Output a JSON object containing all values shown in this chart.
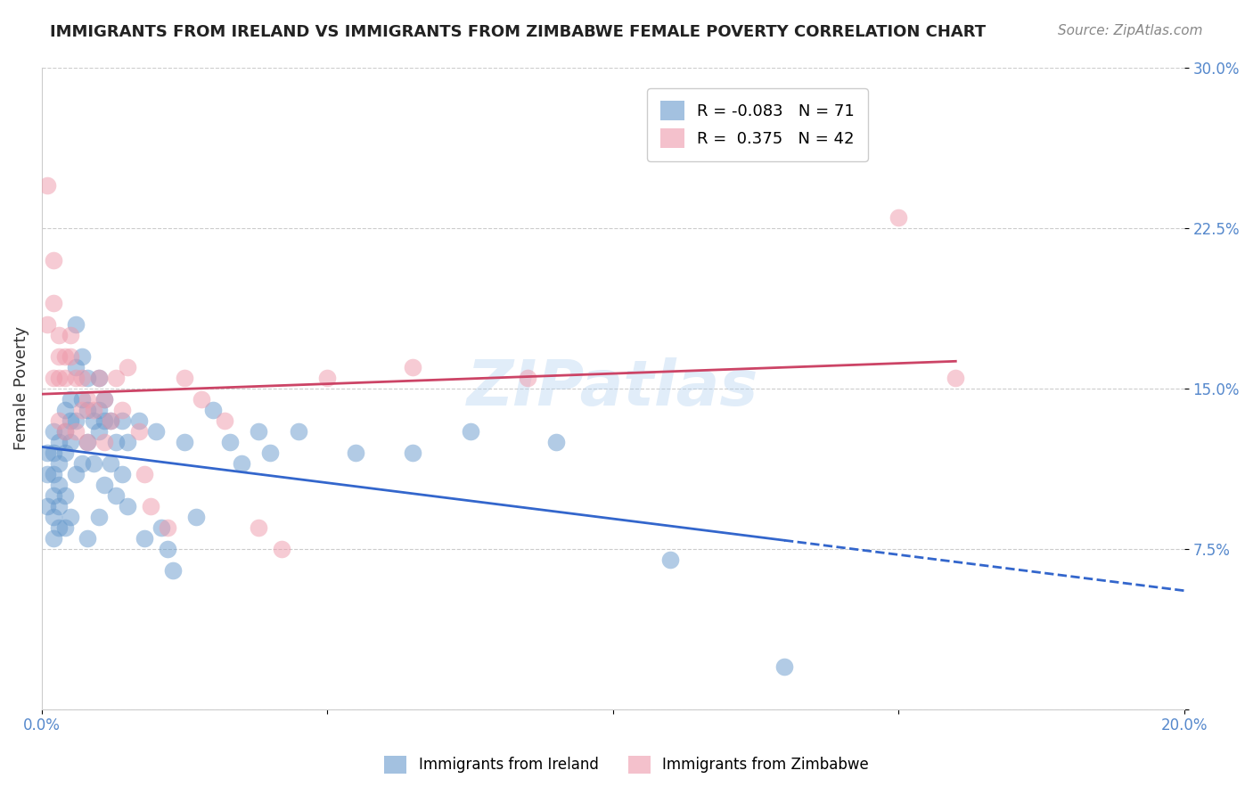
{
  "title": "IMMIGRANTS FROM IRELAND VS IMMIGRANTS FROM ZIMBABWE FEMALE POVERTY CORRELATION CHART",
  "source": "Source: ZipAtlas.com",
  "xlabel": "",
  "ylabel": "Female Poverty",
  "xlim": [
    0.0,
    0.2
  ],
  "ylim": [
    0.0,
    0.3
  ],
  "xticks": [
    0.0,
    0.05,
    0.1,
    0.15,
    0.2
  ],
  "xtick_labels": [
    "0.0%",
    "",
    "",
    "",
    "20.0%"
  ],
  "yticks": [
    0.0,
    0.075,
    0.15,
    0.225,
    0.3
  ],
  "ytick_labels_right": [
    "",
    "7.5%",
    "15.0%",
    "22.5%",
    "30.0%"
  ],
  "ireland_color": "#6699cc",
  "zimbabwe_color": "#ee99aa",
  "ireland_R": -0.083,
  "ireland_N": 71,
  "zimbabwe_R": 0.375,
  "zimbabwe_N": 42,
  "ireland_line_color": "#3366cc",
  "zimbabwe_line_color": "#cc4466",
  "watermark": "ZIPatlas",
  "ireland_x": [
    0.001,
    0.001,
    0.001,
    0.002,
    0.002,
    0.002,
    0.002,
    0.002,
    0.002,
    0.003,
    0.003,
    0.003,
    0.003,
    0.003,
    0.004,
    0.004,
    0.004,
    0.004,
    0.004,
    0.005,
    0.005,
    0.005,
    0.005,
    0.006,
    0.006,
    0.006,
    0.006,
    0.007,
    0.007,
    0.007,
    0.008,
    0.008,
    0.008,
    0.008,
    0.009,
    0.009,
    0.01,
    0.01,
    0.01,
    0.01,
    0.011,
    0.011,
    0.011,
    0.012,
    0.012,
    0.013,
    0.013,
    0.014,
    0.014,
    0.015,
    0.015,
    0.017,
    0.018,
    0.02,
    0.021,
    0.022,
    0.023,
    0.025,
    0.027,
    0.03,
    0.033,
    0.035,
    0.038,
    0.04,
    0.045,
    0.055,
    0.065,
    0.075,
    0.09,
    0.11,
    0.13
  ],
  "ireland_y": [
    0.12,
    0.11,
    0.095,
    0.13,
    0.12,
    0.11,
    0.1,
    0.09,
    0.08,
    0.125,
    0.115,
    0.105,
    0.095,
    0.085,
    0.14,
    0.13,
    0.12,
    0.1,
    0.085,
    0.145,
    0.135,
    0.125,
    0.09,
    0.18,
    0.16,
    0.135,
    0.11,
    0.165,
    0.145,
    0.115,
    0.155,
    0.14,
    0.125,
    0.08,
    0.135,
    0.115,
    0.155,
    0.14,
    0.13,
    0.09,
    0.145,
    0.135,
    0.105,
    0.135,
    0.115,
    0.125,
    0.1,
    0.135,
    0.11,
    0.125,
    0.095,
    0.135,
    0.08,
    0.13,
    0.085,
    0.075,
    0.065,
    0.125,
    0.09,
    0.14,
    0.125,
    0.115,
    0.13,
    0.12,
    0.13,
    0.12,
    0.12,
    0.13,
    0.125,
    0.07,
    0.02
  ],
  "zimbabwe_x": [
    0.001,
    0.001,
    0.002,
    0.002,
    0.002,
    0.003,
    0.003,
    0.003,
    0.003,
    0.004,
    0.004,
    0.004,
    0.005,
    0.005,
    0.006,
    0.006,
    0.007,
    0.007,
    0.008,
    0.008,
    0.009,
    0.01,
    0.011,
    0.011,
    0.012,
    0.013,
    0.014,
    0.015,
    0.017,
    0.018,
    0.019,
    0.022,
    0.025,
    0.028,
    0.032,
    0.038,
    0.042,
    0.05,
    0.065,
    0.085,
    0.15,
    0.16
  ],
  "zimbabwe_y": [
    0.245,
    0.18,
    0.21,
    0.19,
    0.155,
    0.175,
    0.165,
    0.155,
    0.135,
    0.165,
    0.155,
    0.13,
    0.175,
    0.165,
    0.155,
    0.13,
    0.155,
    0.14,
    0.145,
    0.125,
    0.14,
    0.155,
    0.145,
    0.125,
    0.135,
    0.155,
    0.14,
    0.16,
    0.13,
    0.11,
    0.095,
    0.085,
    0.155,
    0.145,
    0.135,
    0.085,
    0.075,
    0.155,
    0.16,
    0.155,
    0.23,
    0.155
  ]
}
